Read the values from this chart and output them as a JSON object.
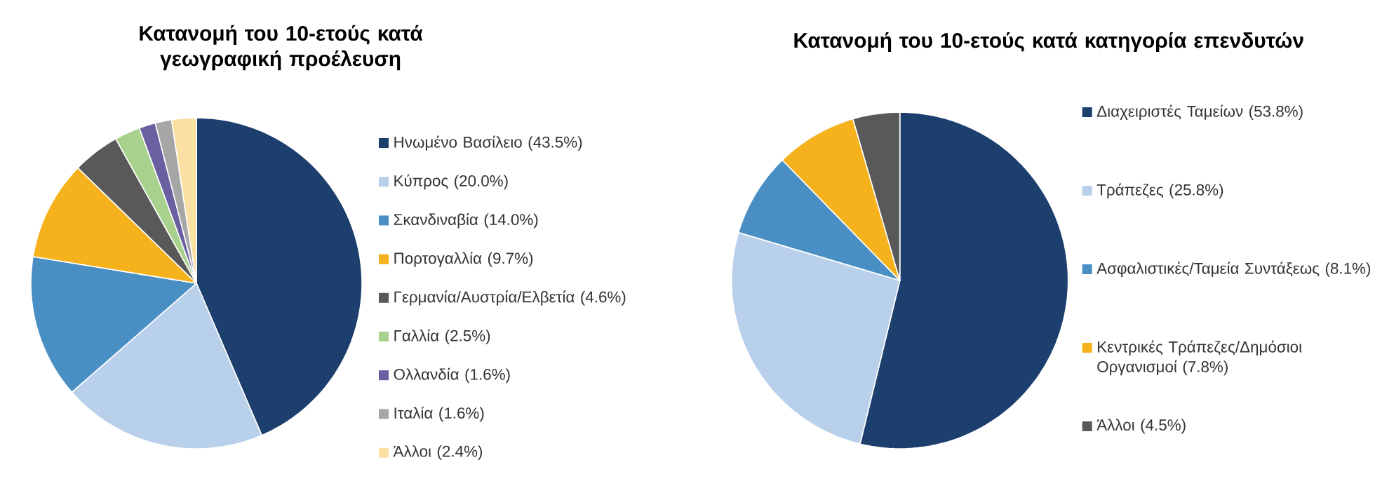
{
  "chart_data": [
    {
      "type": "pie",
      "title": "Κατανομή του 10-ετούς κατά γεωγραφική προέλευση",
      "legend": "right",
      "categories": [
        "Ηνωμένο Βασίλειο",
        "Κύπρος",
        "Σκανδιναβία",
        "Πορτογαλλία",
        "Γερμανία/Αυστρία/Ελβετία",
        "Γαλλία",
        "Ολλανδία",
        "Ιταλία",
        "Άλλοι"
      ],
      "values": [
        43.5,
        20.0,
        14.0,
        9.7,
        4.6,
        2.5,
        1.6,
        1.6,
        2.4
      ],
      "value_labels": [
        "(43.5%)",
        "(20.0%)",
        "(14.0%)",
        "(9.7%)",
        "(4.6%)",
        "(2.5%)",
        "(1.6%)",
        "(1.6%)",
        "(2.4%)"
      ],
      "colors": [
        "#1c3f6e",
        "#b9d0ea",
        "#4a8fc4",
        "#f5b21c",
        "#595959",
        "#a9d18e",
        "#6a5fa0",
        "#a6a6a6",
        "#fbe0a3"
      ]
    },
    {
      "type": "pie",
      "title": "Κατανομή του 10-ετούς κατά κατηγορία επενδυτών",
      "legend": "right",
      "categories": [
        "Διαχειριστές Ταμείων",
        "Τράπεζες",
        "Ασφαλιστικές/Ταμεία Συντάξεως",
        "Κεντρικές Τράπεζες/Δημόσιοι Οργανισμοί",
        "Άλλοι"
      ],
      "values": [
        53.8,
        25.8,
        8.1,
        7.8,
        4.5
      ],
      "value_labels": [
        "(53.8%)",
        "(25.8%)",
        "(8.1%)",
        "(7.8%)",
        "(4.5%)"
      ],
      "colors": [
        "#1c3f6e",
        "#b9d0ea",
        "#4a8fc4",
        "#f5b21c",
        "#595959"
      ]
    }
  ]
}
